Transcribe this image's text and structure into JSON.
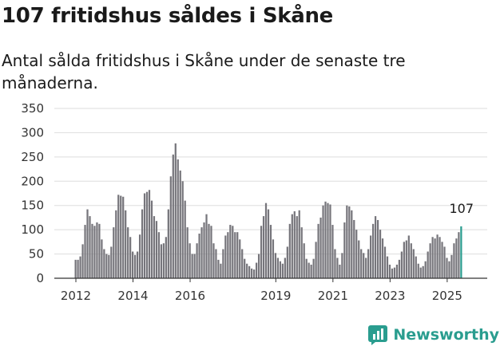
{
  "header": {
    "title": "107 fritidshus såldes i Skåne",
    "subtitle": "Antal sålda fritidshus i Skåne under de senaste tre månaderna."
  },
  "brand": {
    "name": "Newsworthy",
    "icon": "newsworthy-logo-icon"
  },
  "colors": {
    "bar": "#76757b",
    "highlight": "#2a9d8f",
    "grid": "#dddddd",
    "axis": "#333333"
  },
  "chart_data": {
    "type": "bar",
    "title": "107 fritidshus såldes i Skåne",
    "subtitle": "Antal sålda fritidshus i Skåne under de senaste tre månaderna.",
    "xlabel": "",
    "ylabel": "",
    "ylim": [
      0,
      350
    ],
    "y_ticks": [
      0,
      50,
      100,
      150,
      200,
      250,
      300,
      350
    ],
    "x_tick_labels": [
      "2012",
      "2014",
      "2016",
      "2019",
      "2021",
      "2023",
      "2025"
    ],
    "x_tick_months": [
      "2012-01",
      "2014-01",
      "2016-01",
      "2019-01",
      "2021-01",
      "2023-01",
      "2025-01"
    ],
    "grid": "horizontal",
    "legend": "none",
    "start_month": "2012-01",
    "highlight_label": "107",
    "values": [
      38,
      38,
      45,
      70,
      110,
      142,
      128,
      112,
      108,
      115,
      112,
      80,
      60,
      50,
      48,
      65,
      105,
      140,
      172,
      170,
      168,
      140,
      105,
      85,
      55,
      48,
      55,
      90,
      142,
      175,
      178,
      182,
      160,
      128,
      118,
      95,
      70,
      72,
      85,
      142,
      210,
      255,
      278,
      245,
      222,
      200,
      160,
      105,
      72,
      50,
      50,
      72,
      92,
      105,
      115,
      132,
      112,
      108,
      72,
      60,
      38,
      30,
      60,
      88,
      95,
      110,
      108,
      95,
      95,
      80,
      60,
      40,
      30,
      25,
      20,
      18,
      32,
      50,
      108,
      128,
      155,
      142,
      110,
      80,
      52,
      42,
      35,
      30,
      42,
      65,
      112,
      132,
      138,
      128,
      140,
      105,
      72,
      40,
      32,
      28,
      40,
      75,
      112,
      125,
      150,
      158,
      155,
      152,
      110,
      60,
      42,
      28,
      52,
      115,
      150,
      148,
      140,
      120,
      100,
      78,
      60,
      52,
      42,
      60,
      88,
      112,
      128,
      120,
      100,
      82,
      65,
      45,
      28,
      20,
      22,
      28,
      38,
      55,
      75,
      78,
      88,
      72,
      60,
      45,
      30,
      22,
      25,
      35,
      55,
      72,
      85,
      82,
      90,
      85,
      75,
      65,
      42,
      35,
      48,
      72,
      82,
      95,
      107
    ]
  }
}
